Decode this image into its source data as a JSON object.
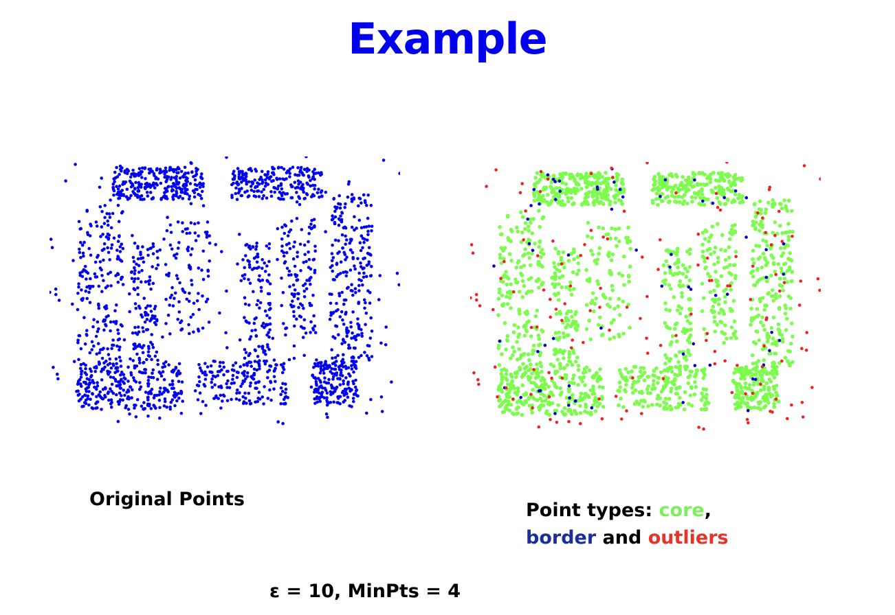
{
  "slide": {
    "title": "Example",
    "left_caption": "Original Points",
    "right_caption": {
      "prefix": "Point types: ",
      "core_word": "core",
      "comma": ",",
      "border_word": "border",
      "and_word": " and ",
      "outliers_word": "outliers"
    },
    "params": "ε = 10, MinPts = 4"
  },
  "colors": {
    "title": "#0000ee",
    "original_points": "#0000ee",
    "core": "#7cfc4c",
    "border": "#0000cc",
    "outlier": "#ee2222",
    "border_text": "#1a2e9c",
    "core_text": "#7cf05a",
    "outlier_text": "#e8332a"
  },
  "chart_data": [
    {
      "type": "scatter",
      "title": "",
      "xlabel": "",
      "ylabel": "",
      "grid": false,
      "legend": "none",
      "xlim": [
        0,
        100
      ],
      "ylim": [
        0,
        100
      ],
      "series": [
        {
          "values": []
        }
      ]
    },
    {
      "type": "scatter",
      "title": "",
      "xlabel": "",
      "ylabel": "",
      "grid": false,
      "legend": "none",
      "xlim": [
        0,
        100
      ],
      "ylim": [
        0,
        100
      ],
      "series": [
        {
          "values": []
        },
        {
          "values": []
        },
        {
          "values": []
        }
      ]
    }
  ]
}
